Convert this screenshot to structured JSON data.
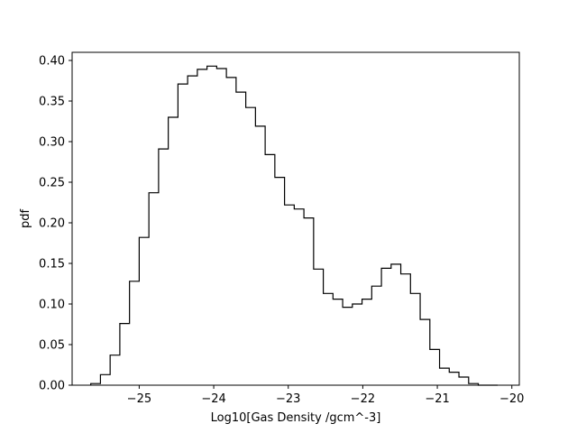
{
  "chart_data": {
    "type": "histogram",
    "title": "",
    "xlabel": "Log10[Gas Density /gcm^-3]",
    "ylabel": "pdf",
    "xlim": [
      -25.9,
      -19.9
    ],
    "ylim": [
      0.0,
      0.41
    ],
    "x_ticks": [
      -25,
      -24,
      -23,
      -22,
      -21,
      -20
    ],
    "x_tick_labels": [
      "−25",
      "−24",
      "−23",
      "−22",
      "−21",
      "−20"
    ],
    "y_ticks": [
      0.0,
      0.05,
      0.1,
      0.15,
      0.2,
      0.25,
      0.3,
      0.35,
      0.4
    ],
    "y_tick_labels": [
      "0.00",
      "0.05",
      "0.10",
      "0.15",
      "0.20",
      "0.25",
      "0.30",
      "0.35",
      "0.40"
    ],
    "grid": false,
    "histtype": "step",
    "line_color": "#000000",
    "bin_edges": [
      -25.65,
      -25.52,
      -25.39,
      -25.26,
      -25.13,
      -25.0,
      -24.87,
      -24.74,
      -24.61,
      -24.48,
      -24.35,
      -24.22,
      -24.09,
      -23.96,
      -23.83,
      -23.7,
      -23.57,
      -23.44,
      -23.31,
      -23.18,
      -23.05,
      -22.92,
      -22.79,
      -22.66,
      -22.53,
      -22.4,
      -22.27,
      -22.14,
      -22.01,
      -21.88,
      -21.75,
      -21.62,
      -21.49,
      -21.36,
      -21.23,
      -21.1,
      -20.97,
      -20.84,
      -20.71,
      -20.58,
      -20.45,
      -20.32,
      -20.19
    ],
    "values": [
      0.002,
      0.013,
      0.037,
      0.076,
      0.128,
      0.182,
      0.237,
      0.291,
      0.33,
      0.371,
      0.381,
      0.389,
      0.393,
      0.39,
      0.379,
      0.361,
      0.342,
      0.319,
      0.284,
      0.256,
      0.222,
      0.217,
      0.206,
      0.143,
      0.113,
      0.106,
      0.096,
      0.1,
      0.106,
      0.122,
      0.144,
      0.149,
      0.137,
      0.113,
      0.081,
      0.044,
      0.021,
      0.016,
      0.01,
      0.002,
      0.0,
      0.0
    ]
  }
}
